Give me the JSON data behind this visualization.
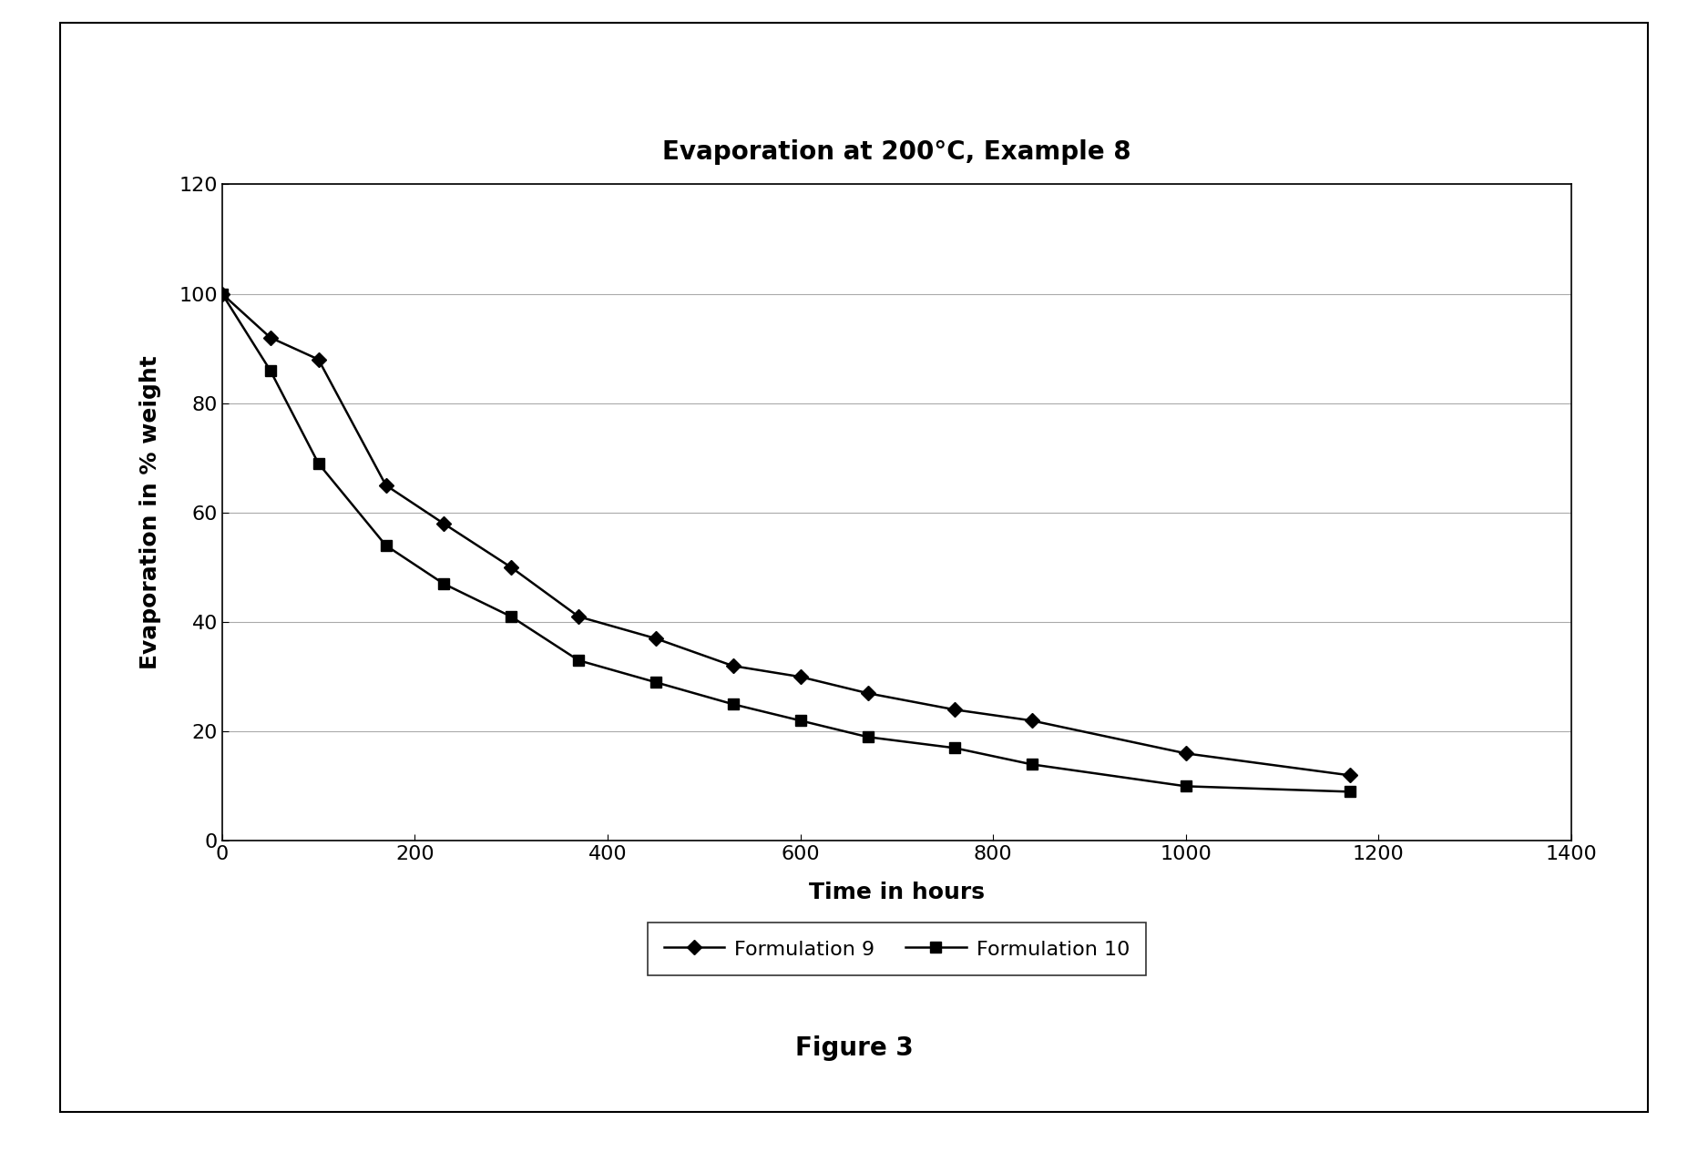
{
  "title": "Evaporation at 200°C, Example 8",
  "xlabel": "Time in hours",
  "ylabel": "Evaporation in % weight",
  "figure_caption": "Figure 3",
  "xlim": [
    0,
    1400
  ],
  "ylim": [
    0,
    120
  ],
  "xticks": [
    0,
    200,
    400,
    600,
    800,
    1000,
    1200,
    1400
  ],
  "yticks": [
    0,
    20,
    40,
    60,
    80,
    100,
    120
  ],
  "formulation9_x": [
    0,
    50,
    100,
    170,
    230,
    300,
    370,
    450,
    530,
    600,
    670,
    760,
    840,
    1000,
    1170
  ],
  "formulation9_y": [
    100,
    92,
    88,
    65,
    58,
    50,
    41,
    37,
    32,
    30,
    27,
    24,
    22,
    16,
    12
  ],
  "formulation10_x": [
    0,
    50,
    100,
    170,
    230,
    300,
    370,
    450,
    530,
    600,
    670,
    760,
    840,
    1000,
    1170
  ],
  "formulation10_y": [
    100,
    86,
    69,
    54,
    47,
    41,
    33,
    29,
    25,
    22,
    19,
    17,
    14,
    10,
    9
  ],
  "line_color": "#000000",
  "background_color": "#ffffff",
  "legend_labels": [
    "Formulation 9",
    "Formulation 10"
  ],
  "title_fontsize": 20,
  "axis_label_fontsize": 18,
  "tick_fontsize": 16,
  "legend_fontsize": 16,
  "caption_fontsize": 20,
  "grid_color": "#aaaaaa",
  "grid_style": "-",
  "grid_linewidth": 0.8
}
